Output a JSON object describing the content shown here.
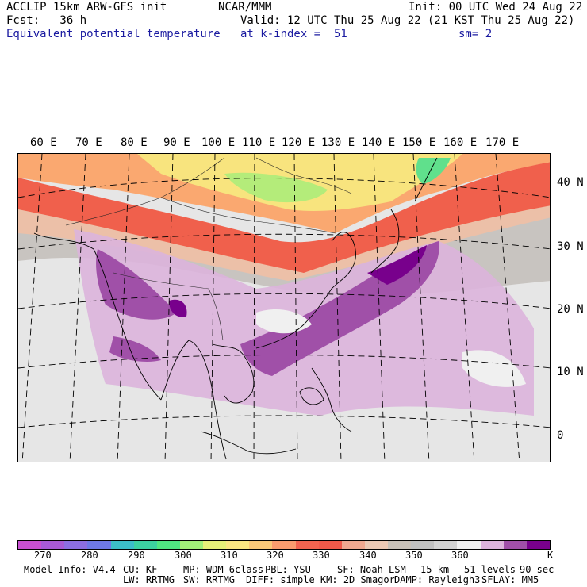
{
  "header": {
    "left1": "ACCLIP 15km ARW-GFS init",
    "center1": "NCAR/MMM",
    "right1": "Init: 00 UTC Wed 24 Aug 22",
    "left2": "Fcst:   36 h",
    "right2": "Valid: 12 UTC Thu 25 Aug 22 (21 KST Thu 25 Aug 22)",
    "field": "Equivalent potential temperature",
    "level": "at k-index =  51",
    "smooth": "sm= 2"
  },
  "lon_labels": [
    "60 E",
    "70 E",
    "80 E",
    "90 E",
    "100 E",
    "110 E",
    "120 E",
    "130 E",
    "140 E",
    "150 E",
    "160 E",
    "170 E"
  ],
  "lat_labels": [
    "40 N",
    "30 N",
    "20 N",
    "10 N",
    "0"
  ],
  "colorbar": {
    "colors": [
      "#c850d2",
      "#a85ad6",
      "#8c6ee2",
      "#6e78e6",
      "#3cbec8",
      "#3cd2a0",
      "#50e682",
      "#a0f078",
      "#e6f078",
      "#fae682",
      "#fac878",
      "#fa9c6e",
      "#f26450",
      "#f05a4a",
      "#f0a890",
      "#ecc8b4",
      "#c8c0b8",
      "#c0c0c0",
      "#d2d2d2",
      "#f0f0f0",
      "#dcb4dc",
      "#a050a8",
      "#78008c"
    ],
    "labels": [
      "270",
      "280",
      "290",
      "300",
      "310",
      "320",
      "330",
      "340",
      "350",
      "360"
    ],
    "unit": "K"
  },
  "footer": {
    "model": "Model Info: V4.4",
    "cu": "CU: KF",
    "mp": "MP: WDM 6class",
    "pbl": "PBL: YSU",
    "sf": "SF: Noah LSM",
    "res": "15 km",
    "levels": "51 levels",
    "dt": "90 sec",
    "lw": "LW: RRTMG",
    "sw": "SW: RRTMG",
    "diff": "DIFF: simple KM: 2D Smagor",
    "damp": "DAMP: Rayleigh3",
    "sflay": "SFLAY: MM5"
  }
}
